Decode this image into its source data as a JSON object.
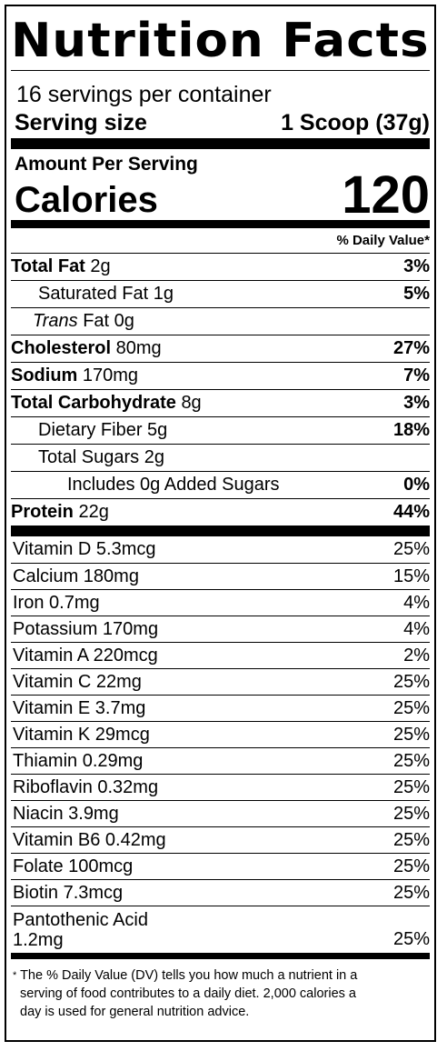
{
  "title": "Nutrition Facts",
  "servings_per_container": "16 servings per container",
  "serving_size": {
    "label": "Serving size",
    "value": "1 Scoop (37g)"
  },
  "amount_per_serving": "Amount Per Serving",
  "calories": {
    "label": "Calories",
    "value": "120"
  },
  "dv_header": "% Daily Value*",
  "nutrients": [
    {
      "name": "Total Fat",
      "amount": "2g",
      "dv": "3%"
    },
    {
      "name": "Saturated Fat",
      "amount": "1g",
      "dv": "5%"
    },
    {
      "name": "Trans",
      "suffix": "Fat",
      "amount": "0g",
      "dv": ""
    },
    {
      "name": "Cholesterol",
      "amount": "80mg",
      "dv": "27%"
    },
    {
      "name": "Sodium",
      "amount": "170mg",
      "dv": "7%"
    },
    {
      "name": "Total Carbohydrate",
      "amount": "8g",
      "dv": "3%"
    },
    {
      "name": "Dietary Fiber",
      "amount": "5g",
      "dv": "18%"
    },
    {
      "name": "Total Sugars",
      "amount": "2g",
      "dv": ""
    },
    {
      "name": "Includes 0g Added Sugars",
      "amount": "",
      "dv": "0%"
    },
    {
      "name": "Protein",
      "amount": "22g",
      "dv": "44%"
    }
  ],
  "vitamins": [
    {
      "label": "Vitamin D 5.3mcg",
      "dv": "25%"
    },
    {
      "label": "Calcium 180mg",
      "dv": "15%"
    },
    {
      "label": "Iron 0.7mg",
      "dv": "4%"
    },
    {
      "label": "Potassium 170mg",
      "dv": "4%"
    },
    {
      "label": "Vitamin A 220mcg",
      "dv": "2%"
    },
    {
      "label": "Vitamin C 22mg",
      "dv": "25%"
    },
    {
      "label": "Vitamin E 3.7mg",
      "dv": "25%"
    },
    {
      "label": "Vitamin K 29mcg",
      "dv": "25%"
    },
    {
      "label": "Thiamin 0.29mg",
      "dv": "25%"
    },
    {
      "label": "Riboflavin 0.32mg",
      "dv": "25%"
    },
    {
      "label": "Niacin 3.9mg",
      "dv": "25%"
    },
    {
      "label": "Vitamin B6 0.42mg",
      "dv": "25%"
    },
    {
      "label": "Folate 100mcg",
      "dv": "25%"
    },
    {
      "label": "Biotin 7.3mcg",
      "dv": "25%"
    },
    {
      "label_line1": "Pantothenic Acid",
      "label_line2": "1.2mg",
      "dv": "25%"
    }
  ],
  "footnote": {
    "star": "*",
    "line1": "The % Daily Value (DV) tells you how much a nutrient in a",
    "line2": "serving of food contributes to a daily diet. 2,000 calories a",
    "line3": "day is used for general nutrition advice."
  }
}
